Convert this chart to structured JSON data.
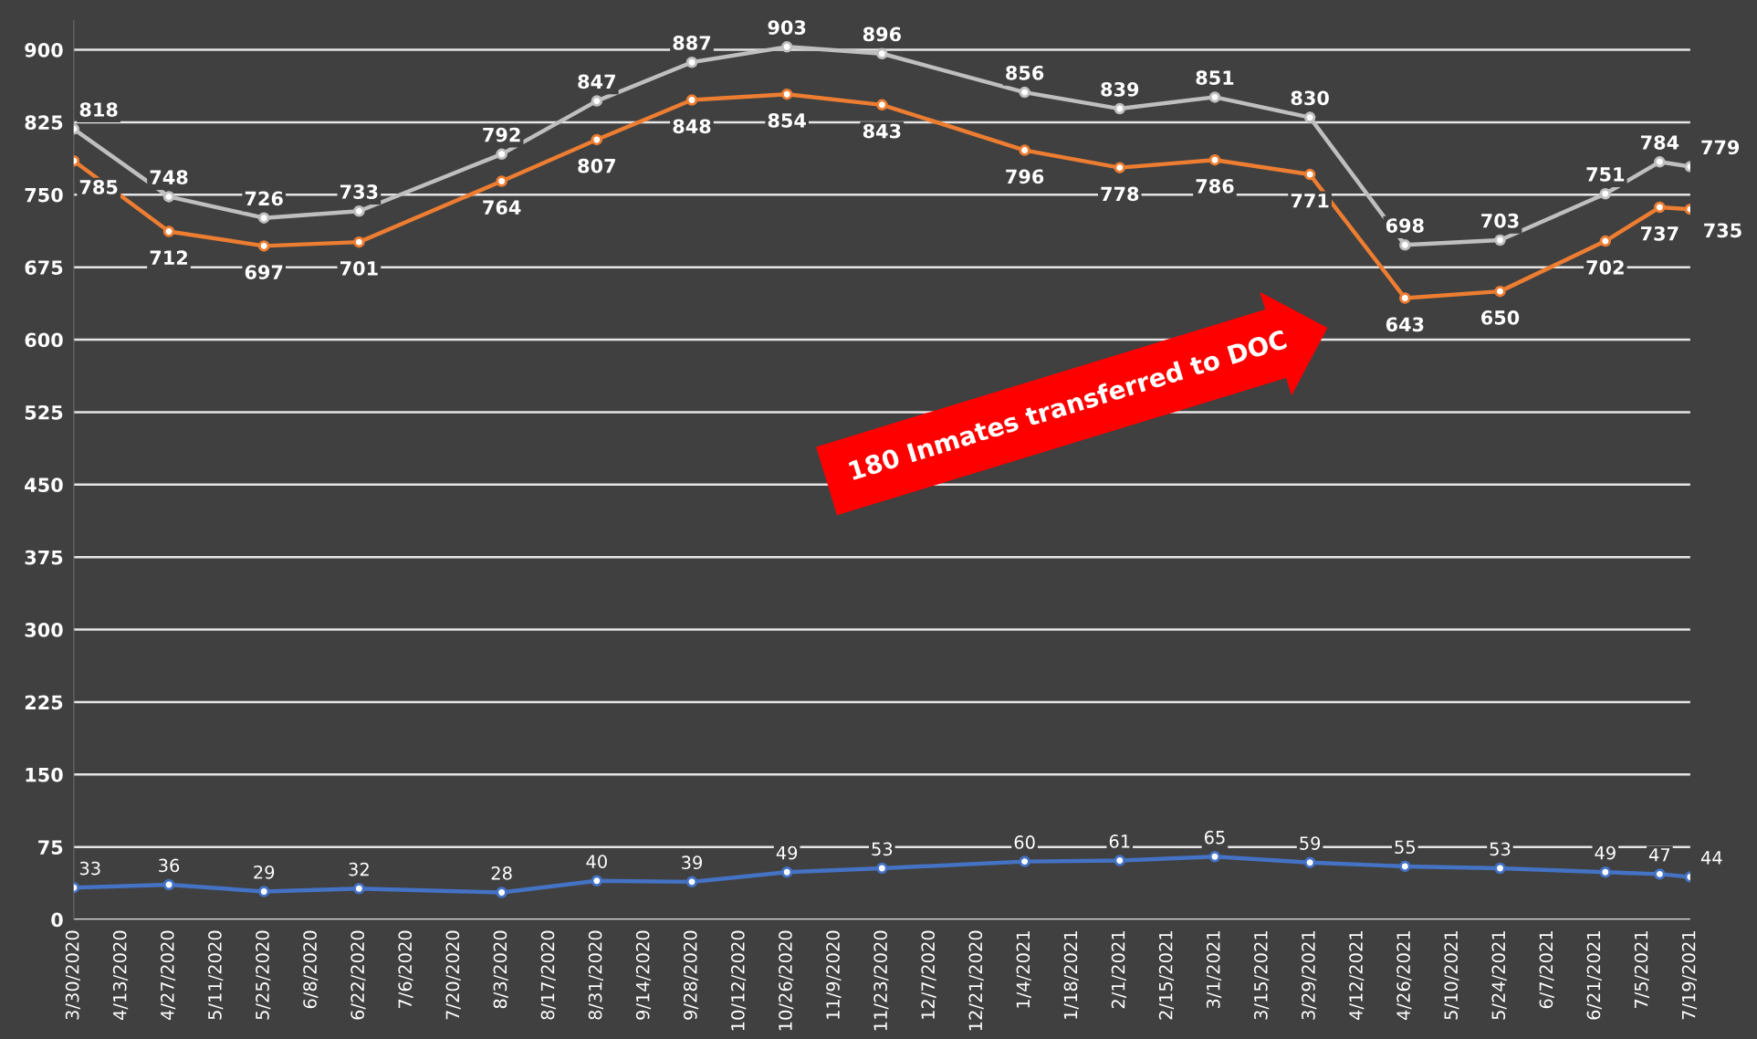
{
  "chart_data": {
    "type": "line",
    "x": [
      "2020-03-30",
      "2020-04-27",
      "2020-05-25",
      "2020-06-22",
      "2020-08-03",
      "2020-08-31",
      "2020-09-28",
      "2020-10-26",
      "2020-11-23",
      "2021-01-04",
      "2021-02-01",
      "2021-03-01",
      "2021-03-29",
      "2021-04-26",
      "2021-05-24",
      "2021-06-24",
      "2021-07-10",
      "2021-07-19"
    ],
    "series": [
      {
        "color": "#bfbfbf",
        "values": [
          818,
          748,
          726,
          733,
          792,
          847,
          887,
          903,
          896,
          856,
          839,
          851,
          830,
          698,
          703,
          751,
          784,
          779
        ]
      },
      {
        "color": "#ed7d31",
        "values": [
          785,
          712,
          697,
          701,
          764,
          807,
          848,
          854,
          843,
          796,
          778,
          786,
          771,
          643,
          650,
          702,
          737,
          735
        ]
      },
      {
        "color": "#4472c4",
        "values": [
          33,
          36,
          29,
          32,
          28,
          40,
          39,
          49,
          53,
          60,
          61,
          65,
          59,
          55,
          53,
          49,
          47,
          44
        ]
      }
    ],
    "xlim": [
      "2020-03-30",
      "2021-07-19"
    ],
    "xticks": [
      {
        "value": "2020-03-30",
        "label": "3/30/2020"
      },
      {
        "value": "2020-04-13",
        "label": "4/13/2020"
      },
      {
        "value": "2020-04-27",
        "label": "4/27/2020"
      },
      {
        "value": "2020-05-11",
        "label": "5/11/2020"
      },
      {
        "value": "2020-05-25",
        "label": "5/25/2020"
      },
      {
        "value": "2020-06-08",
        "label": "6/8/2020"
      },
      {
        "value": "2020-06-22",
        "label": "6/22/2020"
      },
      {
        "value": "2020-07-06",
        "label": "7/6/2020"
      },
      {
        "value": "2020-07-20",
        "label": "7/20/2020"
      },
      {
        "value": "2020-08-03",
        "label": "8/3/2020"
      },
      {
        "value": "2020-08-17",
        "label": "8/17/2020"
      },
      {
        "value": "2020-08-31",
        "label": "8/31/2020"
      },
      {
        "value": "2020-09-14",
        "label": "9/14/2020"
      },
      {
        "value": "2020-09-28",
        "label": "9/28/2020"
      },
      {
        "value": "2020-10-12",
        "label": "10/12/2020"
      },
      {
        "value": "2020-10-26",
        "label": "10/26/2020"
      },
      {
        "value": "2020-11-09",
        "label": "11/9/2020"
      },
      {
        "value": "2020-11-23",
        "label": "11/23/2020"
      },
      {
        "value": "2020-12-07",
        "label": "12/7/2020"
      },
      {
        "value": "2020-12-21",
        "label": "12/21/2020"
      },
      {
        "value": "2021-01-04",
        "label": "1/4/2021"
      },
      {
        "value": "2021-01-18",
        "label": "1/18/2021"
      },
      {
        "value": "2021-02-01",
        "label": "2/1/2021"
      },
      {
        "value": "2021-02-15",
        "label": "2/15/2021"
      },
      {
        "value": "2021-03-01",
        "label": "3/1/2021"
      },
      {
        "value": "2021-03-15",
        "label": "3/15/2021"
      },
      {
        "value": "2021-03-29",
        "label": "3/29/2021"
      },
      {
        "value": "2021-04-12",
        "label": "4/12/2021"
      },
      {
        "value": "2021-04-26",
        "label": "4/26/2021"
      },
      {
        "value": "2021-05-10",
        "label": "5/10/2021"
      },
      {
        "value": "2021-05-24",
        "label": "5/24/2021"
      },
      {
        "value": "2021-06-07",
        "label": "6/7/2021"
      },
      {
        "value": "2021-06-21",
        "label": "6/21/2021"
      },
      {
        "value": "2021-07-05",
        "label": "7/5/2021"
      },
      {
        "value": "2021-07-19",
        "label": "7/19/2021"
      }
    ],
    "ylim": [
      0,
      930
    ],
    "yticks": [
      0,
      75,
      150,
      225,
      300,
      375,
      450,
      525,
      600,
      675,
      750,
      825,
      900
    ],
    "grid": "y",
    "marker": "circle",
    "line_style": "solid",
    "data_labels": true,
    "legend": false,
    "annotations": [
      "180 Inmates transferred to DOC"
    ]
  }
}
